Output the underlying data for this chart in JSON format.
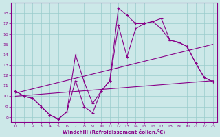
{
  "xlabel": "Windchill (Refroidissement éolien,°C)",
  "background_color": "#cce8e8",
  "line_color": "#880088",
  "grid_color": "#99cccc",
  "xlim_min": -0.5,
  "xlim_max": 23.5,
  "ylim_min": 7.5,
  "ylim_max": 19.0,
  "xticks": [
    0,
    1,
    2,
    3,
    4,
    5,
    6,
    7,
    8,
    9,
    10,
    11,
    12,
    13,
    14,
    15,
    16,
    17,
    18,
    19,
    20,
    21,
    22,
    23
  ],
  "yticks": [
    8,
    9,
    10,
    11,
    12,
    13,
    14,
    15,
    16,
    17,
    18
  ],
  "curve1_x": [
    0,
    1,
    2,
    3,
    4,
    5,
    6,
    7,
    8,
    9,
    10,
    11,
    12,
    13,
    14,
    15,
    16,
    17,
    18,
    19,
    20,
    21,
    22,
    23
  ],
  "curve1_y": [
    10.5,
    10.0,
    9.8,
    9.0,
    8.2,
    7.8,
    8.5,
    14.0,
    11.4,
    9.3,
    10.5,
    11.5,
    18.5,
    17.8,
    17.0,
    17.0,
    17.2,
    17.5,
    15.4,
    15.2,
    14.8,
    13.2,
    11.8,
    11.4
  ],
  "curve2_x": [
    0,
    1,
    2,
    3,
    4,
    5,
    6,
    7,
    8,
    9,
    10,
    11,
    12,
    13,
    14,
    15,
    16,
    17,
    18,
    19,
    20,
    21,
    22,
    23
  ],
  "curve2_y": [
    10.5,
    10.0,
    9.8,
    9.0,
    8.2,
    7.8,
    8.5,
    11.5,
    9.0,
    8.4,
    10.5,
    11.5,
    16.8,
    13.8,
    16.5,
    17.0,
    17.2,
    16.5,
    15.4,
    15.2,
    14.8,
    13.2,
    11.8,
    11.4
  ],
  "trend1_x": [
    0,
    23
  ],
  "trend1_y": [
    10.3,
    15.0
  ],
  "trend2_x": [
    0,
    23
  ],
  "trend2_y": [
    10.0,
    11.5
  ]
}
